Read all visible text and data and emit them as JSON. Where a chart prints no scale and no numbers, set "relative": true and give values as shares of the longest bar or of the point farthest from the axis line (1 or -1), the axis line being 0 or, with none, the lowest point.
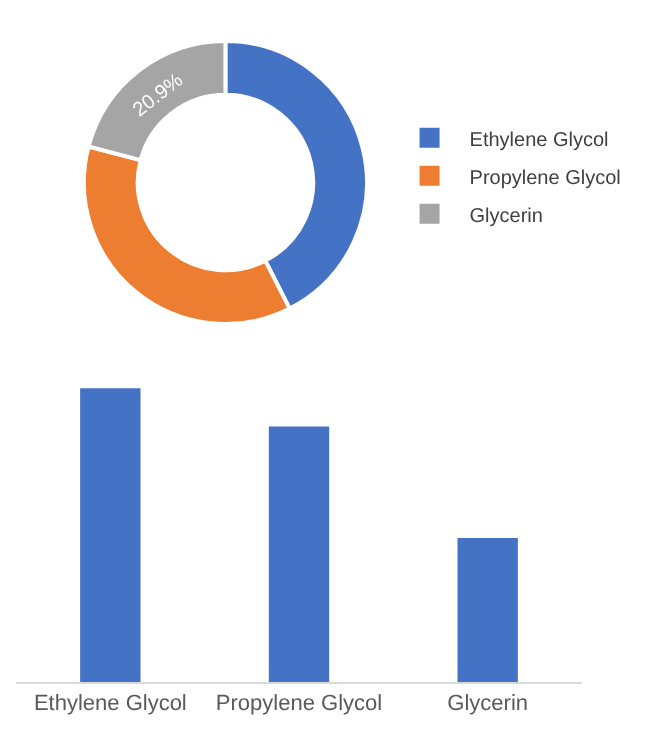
{
  "chart_data": [
    {
      "type": "donut",
      "categories": [
        "Ethylene Glycol",
        "Propylene Glycol",
        "Glycerin"
      ],
      "values": [
        42.5,
        36.6,
        20.9
      ],
      "colors": [
        "#4472c4",
        "#ed7d31",
        "#a5a5a5"
      ],
      "value_labels": [
        null,
        null,
        "20.9%"
      ],
      "legend": "right"
    },
    {
      "type": "bar",
      "categories": [
        "Ethylene Glycol",
        "Propylene Glycol",
        "Glycerin"
      ],
      "values": [
        1,
        0.87,
        0.49
      ],
      "color": "#4472c4",
      "relative": true
    }
  ]
}
